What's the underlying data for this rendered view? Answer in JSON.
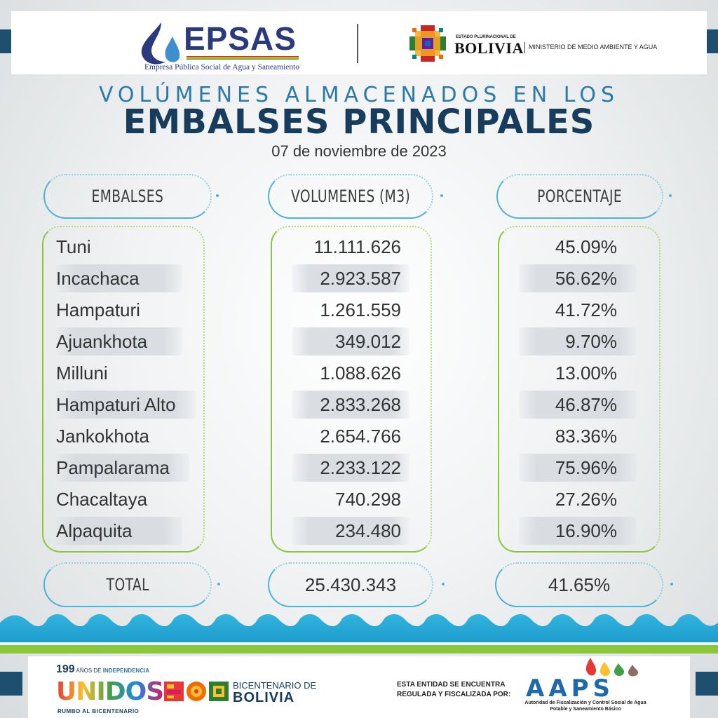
{
  "header": {
    "epsas_name": "EPSAS",
    "epsas_subtitle": "Empresa Pública Social de Agua y Saneamiento",
    "state_label": "ESTADO PLURINACIONAL DE",
    "country": "BOLIVIA",
    "ministry": "MINISTERIO DE MEDIO AMBIENTE Y AGUA"
  },
  "title": {
    "line1": "VOLÚMENES ALMACENADOS EN LOS",
    "line2": "EMBALSES PRINCIPALES",
    "date": "07 de noviembre de 2023"
  },
  "table": {
    "headers": [
      "EMBALSES",
      "VOLUMENES (M3)",
      "PORCENTAJE"
    ],
    "rows": [
      {
        "name": "Tuni",
        "volume": "11.111.626",
        "percent": "45.09%"
      },
      {
        "name": "Incachaca",
        "volume": "2.923.587",
        "percent": "56.62%"
      },
      {
        "name": "Hampaturi",
        "volume": "1.261.559",
        "percent": "41.72%"
      },
      {
        "name": "Ajuankhota",
        "volume": "349.012",
        "percent": "9.70%"
      },
      {
        "name": "Milluni",
        "volume": "1.088.626",
        "percent": "13.00%"
      },
      {
        "name": "Hampaturi Alto",
        "volume": "2.833.268",
        "percent": "46.87%"
      },
      {
        "name": "Jankokhota",
        "volume": "2.654.766",
        "percent": "83.36%"
      },
      {
        "name": "Pampalarama",
        "volume": "2.233.122",
        "percent": "75.96%"
      },
      {
        "name": "Chacaltaya",
        "volume": "740.298",
        "percent": "27.26%"
      },
      {
        "name": "Alpaquita",
        "volume": "234.480",
        "percent": "16.90%"
      }
    ],
    "total": {
      "label": "TOTAL",
      "volume": "25.430.343",
      "percent": "41.65%"
    }
  },
  "footer": {
    "years_number": "199",
    "years_text": "AÑOS DE",
    "years_bold": "INDEPENDENCIA",
    "unidos": "UNIDOS",
    "rumbo": "RUMBO AL BICENTENARIO",
    "bicentenario_small": "BICENTENARIO DE",
    "bicentenario_big": "BOLIVIA",
    "regulada": "ESTA ENTIDAD SE ENCUENTRA REGULADA Y FISCALIZADA POR:",
    "aaps": "AAPS",
    "aaps_subtitle": "Autoridad de Fiscalización y Control Social de Agua Potable y Saneamiento Básico"
  },
  "colors": {
    "title_dark": "#173c5c",
    "title_light": "#2b7aa8",
    "pill_border": "#4fb2d6",
    "box_border": "#8cc63f",
    "wave": "#1ea7d3"
  }
}
